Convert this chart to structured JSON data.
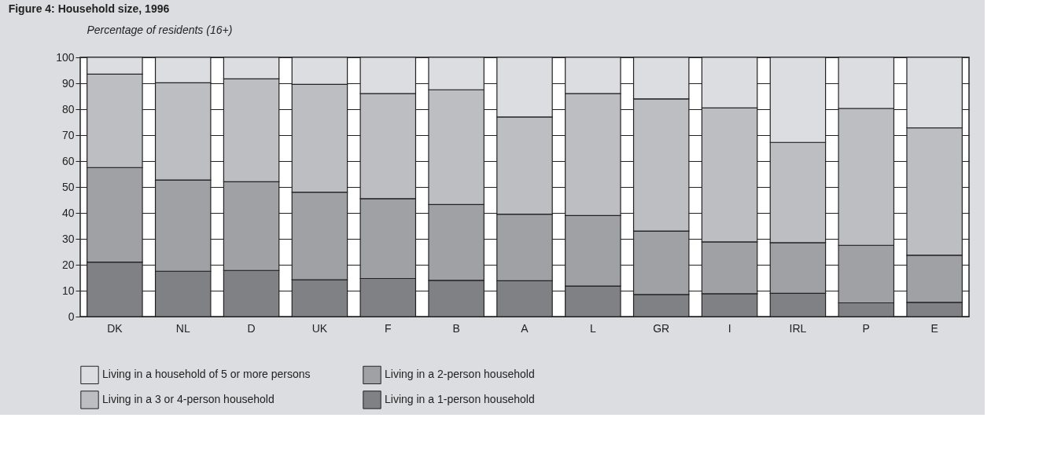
{
  "chart_data": {
    "type": "bar",
    "stacked": true,
    "title": "Figure 4: Household size, 1996",
    "ylabel": "Percentage of residents (16+)",
    "categories": [
      "DK",
      "NL",
      "D",
      "UK",
      "F",
      "B",
      "A",
      "L",
      "GR",
      "I",
      "IRL",
      "P",
      "E"
    ],
    "series": [
      {
        "name": "Living in a 1-person household",
        "color": "#808185",
        "values": [
          21,
          17.5,
          17.8,
          14.2,
          14.7,
          14,
          13.8,
          11.8,
          8.5,
          8.8,
          9,
          5.3,
          5.5
        ]
      },
      {
        "name": "Living in a 2-person household",
        "color": "#a0a1a5",
        "values": [
          36.5,
          35.2,
          34.2,
          33.8,
          30.8,
          29.2,
          25.7,
          27.2,
          24.5,
          20,
          19.5,
          22.2,
          18.2
        ]
      },
      {
        "name": "Living in a 3 or 4-person household",
        "color": "#bdbec2",
        "values": [
          36,
          37.5,
          39.7,
          41.6,
          40.5,
          44.3,
          37.5,
          47,
          51,
          51.7,
          38.7,
          52.8,
          49.1
        ]
      },
      {
        "name": "Living in a household of  5 or more persons",
        "color": "#dcdde0",
        "values": [
          6.5,
          9.8,
          8.3,
          10.4,
          14,
          12.5,
          23,
          14,
          16,
          19.5,
          32.8,
          19.7,
          27.2
        ]
      }
    ],
    "ylim": [
      0,
      100
    ],
    "yticks": [
      0,
      10,
      20,
      30,
      40,
      50,
      60,
      70,
      80,
      90,
      100
    ],
    "grid": "y",
    "legend": "bottom"
  }
}
